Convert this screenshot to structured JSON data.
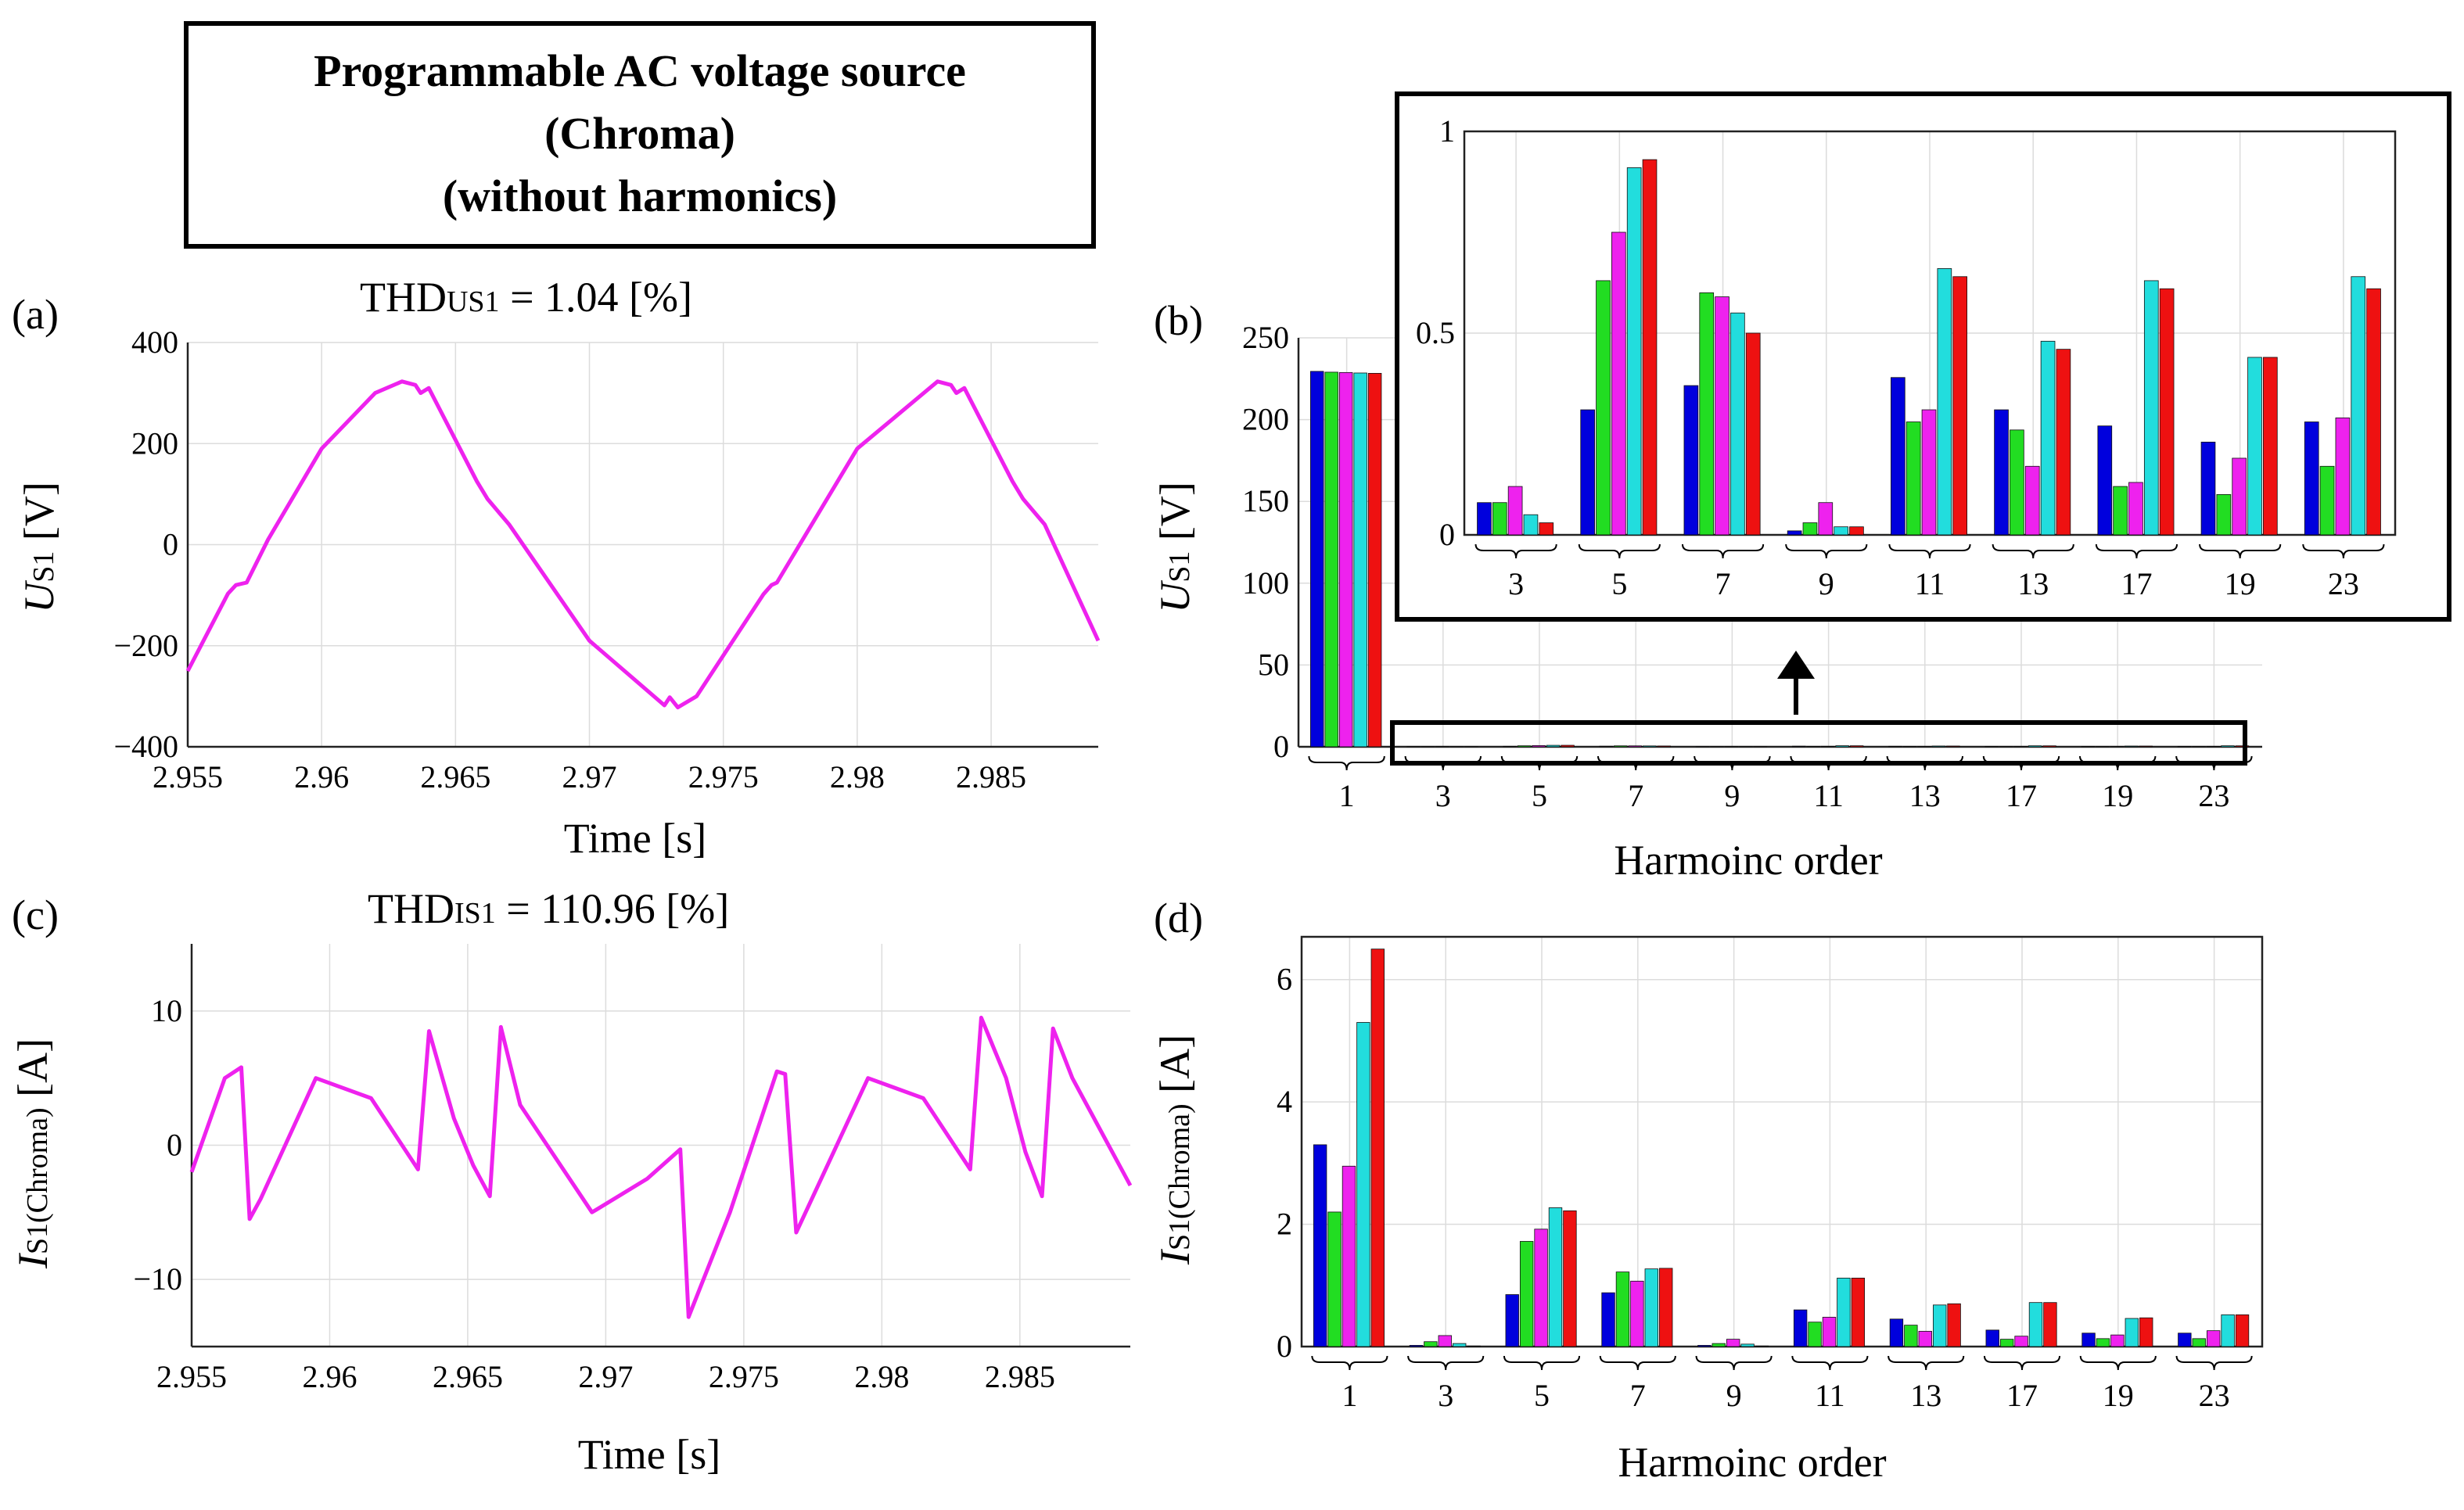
{
  "header_box": {
    "line1": "Programmable AC voltage source",
    "line2": "(Chroma)",
    "line3": "(without harmonics)"
  },
  "panel_a": {
    "panel_label": "(a)",
    "thd_prefix": "THD",
    "thd_sub": "US1",
    "thd_value": " = 1.04 [%]",
    "ylabel_main": "U",
    "ylabel_sub": "S1",
    "ylabel_unit": " [V]",
    "xlabel": "Time [s]"
  },
  "panel_b": {
    "panel_label": "(b)",
    "ylabel_main": "U",
    "ylabel_sub": "S1",
    "ylabel_unit": " [V]",
    "xlabel": "Harmoinc order"
  },
  "panel_c": {
    "panel_label": "(c)",
    "thd_prefix": "THD",
    "thd_sub": "IS1",
    "thd_value": "  = 110.96 [%]",
    "ylabel_main": "I",
    "ylabel_sub": "S1(Chroma)",
    "ylabel_unit": " [A]",
    "xlabel": "Time [s]"
  },
  "panel_d": {
    "panel_label": "(d)",
    "ylabel_main": "I",
    "ylabel_sub": "S1(Chroma)",
    "ylabel_unit": " [A]",
    "xlabel": "Harmoinc order"
  },
  "series_colors": [
    "#0000dd",
    "#22dd22",
    "#ee22ee",
    "#22dddd",
    "#ee1111"
  ],
  "waveform_color": "#ee22ee",
  "chart_data": [
    {
      "id": "a",
      "type": "line",
      "xlabel": "Time [s]",
      "ylabel": "US1 [V]",
      "xlim": [
        2.955,
        2.989
      ],
      "ylim": [
        -400,
        400
      ],
      "xticks": [
        2.955,
        2.96,
        2.965,
        2.97,
        2.975,
        2.98,
        2.985
      ],
      "xtick_labels": [
        "2.955",
        "2.96",
        "2.965",
        "2.97",
        "2.975",
        "2.98",
        "2.985"
      ],
      "yticks": [
        -400,
        -200,
        0,
        200,
        400
      ],
      "ytick_labels": [
        "−400",
        "−200",
        "0",
        "200",
        "400"
      ],
      "grid": true,
      "series": [
        {
          "x": [
            2.955,
            2.9565,
            2.9568,
            2.9572,
            2.958,
            2.96,
            2.962,
            2.963,
            2.9635,
            2.9637,
            2.964,
            2.9658,
            2.9662,
            2.967,
            2.97,
            2.9728,
            2.973,
            2.9733,
            2.974,
            2.9765,
            2.9768,
            2.977,
            2.98,
            2.983,
            2.9835,
            2.9837,
            2.984,
            2.9858,
            2.9862,
            2.987,
            2.989
          ],
          "y": [
            -250,
            -97,
            -80,
            -75,
            10,
            190,
            300,
            323,
            316,
            300,
            310,
            125,
            90,
            40,
            -190,
            -318,
            -302,
            -322,
            -300,
            -98,
            -80,
            -75,
            190,
            323,
            316,
            300,
            310,
            125,
            90,
            40,
            -190
          ]
        }
      ]
    },
    {
      "id": "b",
      "type": "bar",
      "xlabel": "Harmoinc order",
      "ylabel": "US1 [V]",
      "categories": [
        "1",
        "3",
        "5",
        "7",
        "9",
        "11",
        "13",
        "17",
        "19",
        "23"
      ],
      "ylim": [
        0,
        250
      ],
      "yticks": [
        0,
        50,
        100,
        150,
        200,
        250
      ],
      "ytick_labels": [
        "0",
        "50",
        "100",
        "150",
        "200",
        "250"
      ],
      "grid": true,
      "series": [
        {
          "values": [
            229.5,
            0.08,
            0.31,
            0.37,
            0.01,
            0.39,
            0.31,
            0.27,
            0.23,
            0.28
          ]
        },
        {
          "values": [
            229.0,
            0.08,
            0.63,
            0.6,
            0.03,
            0.28,
            0.26,
            0.12,
            0.1,
            0.17
          ]
        },
        {
          "values": [
            228.8,
            0.12,
            0.75,
            0.59,
            0.08,
            0.31,
            0.17,
            0.13,
            0.19,
            0.29
          ]
        },
        {
          "values": [
            228.5,
            0.05,
            0.91,
            0.55,
            0.02,
            0.66,
            0.48,
            0.63,
            0.44,
            0.64
          ]
        },
        {
          "values": [
            228.3,
            0.03,
            0.93,
            0.5,
            0.02,
            0.64,
            0.46,
            0.61,
            0.44,
            0.61
          ]
        }
      ]
    },
    {
      "id": "b_inset",
      "type": "bar",
      "categories": [
        "3",
        "5",
        "7",
        "9",
        "11",
        "13",
        "17",
        "19",
        "23"
      ],
      "ylim": [
        0,
        1
      ],
      "yticks": [
        0,
        0.5,
        1
      ],
      "ytick_labels": [
        "0",
        "0.5",
        "1"
      ],
      "grid": true,
      "series": [
        {
          "values": [
            0.08,
            0.31,
            0.37,
            0.01,
            0.39,
            0.31,
            0.27,
            0.23,
            0.28
          ]
        },
        {
          "values": [
            0.08,
            0.63,
            0.6,
            0.03,
            0.28,
            0.26,
            0.12,
            0.1,
            0.17
          ]
        },
        {
          "values": [
            0.12,
            0.75,
            0.59,
            0.08,
            0.31,
            0.17,
            0.13,
            0.19,
            0.29
          ]
        },
        {
          "values": [
            0.05,
            0.91,
            0.55,
            0.02,
            0.66,
            0.48,
            0.63,
            0.44,
            0.64
          ]
        },
        {
          "values": [
            0.03,
            0.93,
            0.5,
            0.02,
            0.64,
            0.46,
            0.61,
            0.44,
            0.61
          ]
        }
      ]
    },
    {
      "id": "c",
      "type": "line",
      "xlabel": "Time [s]",
      "ylabel": "IS1(Chroma) [A]",
      "xlim": [
        2.955,
        2.989
      ],
      "ylim": [
        -15,
        15
      ],
      "xticks": [
        2.955,
        2.96,
        2.965,
        2.97,
        2.975,
        2.98,
        2.985
      ],
      "xtick_labels": [
        "2.955",
        "2.96",
        "2.965",
        "2.97",
        "2.975",
        "2.98",
        "2.985"
      ],
      "yticks": [
        -10,
        0,
        10
      ],
      "ytick_labels": [
        "−10",
        "0",
        "10"
      ],
      "grid": true,
      "series": [
        {
          "x": [
            2.955,
            2.9562,
            2.9568,
            2.9571,
            2.9575,
            2.9595,
            2.9615,
            2.9632,
            2.9636,
            2.9645,
            2.9652,
            2.9658,
            2.9662,
            2.9669,
            2.9695,
            2.9715,
            2.9727,
            2.973,
            2.9745,
            2.9762,
            2.9765,
            2.9769,
            2.9795,
            2.9815,
            2.9832,
            2.9836,
            2.9845,
            2.9852,
            2.9858,
            2.9862,
            2.9869,
            2.989
          ],
          "y": [
            -2,
            5,
            5.8,
            -5.5,
            -4,
            5,
            3.5,
            -1.8,
            8.5,
            2,
            -1.5,
            -3.8,
            8.8,
            3,
            -5,
            -2.5,
            -0.3,
            -12.8,
            -5,
            5.5,
            5.3,
            -6.5,
            5,
            3.5,
            -1.8,
            9.5,
            5,
            -0.5,
            -3.8,
            8.7,
            5,
            -3
          ]
        }
      ]
    },
    {
      "id": "d",
      "type": "bar",
      "xlabel": "Harmoinc order",
      "ylabel": "IS1(Chroma) [A]",
      "categories": [
        "1",
        "3",
        "5",
        "7",
        "9",
        "11",
        "13",
        "17",
        "19",
        "23"
      ],
      "ylim": [
        0,
        6.7
      ],
      "yticks": [
        0,
        2,
        4,
        6
      ],
      "ytick_labels": [
        "0",
        "2",
        "4",
        "6"
      ],
      "grid": true,
      "series": [
        {
          "values": [
            3.3,
            0.02,
            0.85,
            0.88,
            0.02,
            0.6,
            0.45,
            0.27,
            0.22,
            0.22
          ]
        },
        {
          "values": [
            2.2,
            0.08,
            1.72,
            1.22,
            0.05,
            0.4,
            0.35,
            0.12,
            0.13,
            0.13
          ]
        },
        {
          "values": [
            2.95,
            0.18,
            1.92,
            1.07,
            0.12,
            0.48,
            0.25,
            0.17,
            0.19,
            0.26
          ]
        },
        {
          "values": [
            5.3,
            0.05,
            2.27,
            1.27,
            0.04,
            1.12,
            0.68,
            0.72,
            0.46,
            0.52
          ]
        },
        {
          "values": [
            6.5,
            0.01,
            2.22,
            1.28,
            0.01,
            1.12,
            0.7,
            0.72,
            0.47,
            0.52
          ]
        }
      ]
    }
  ]
}
